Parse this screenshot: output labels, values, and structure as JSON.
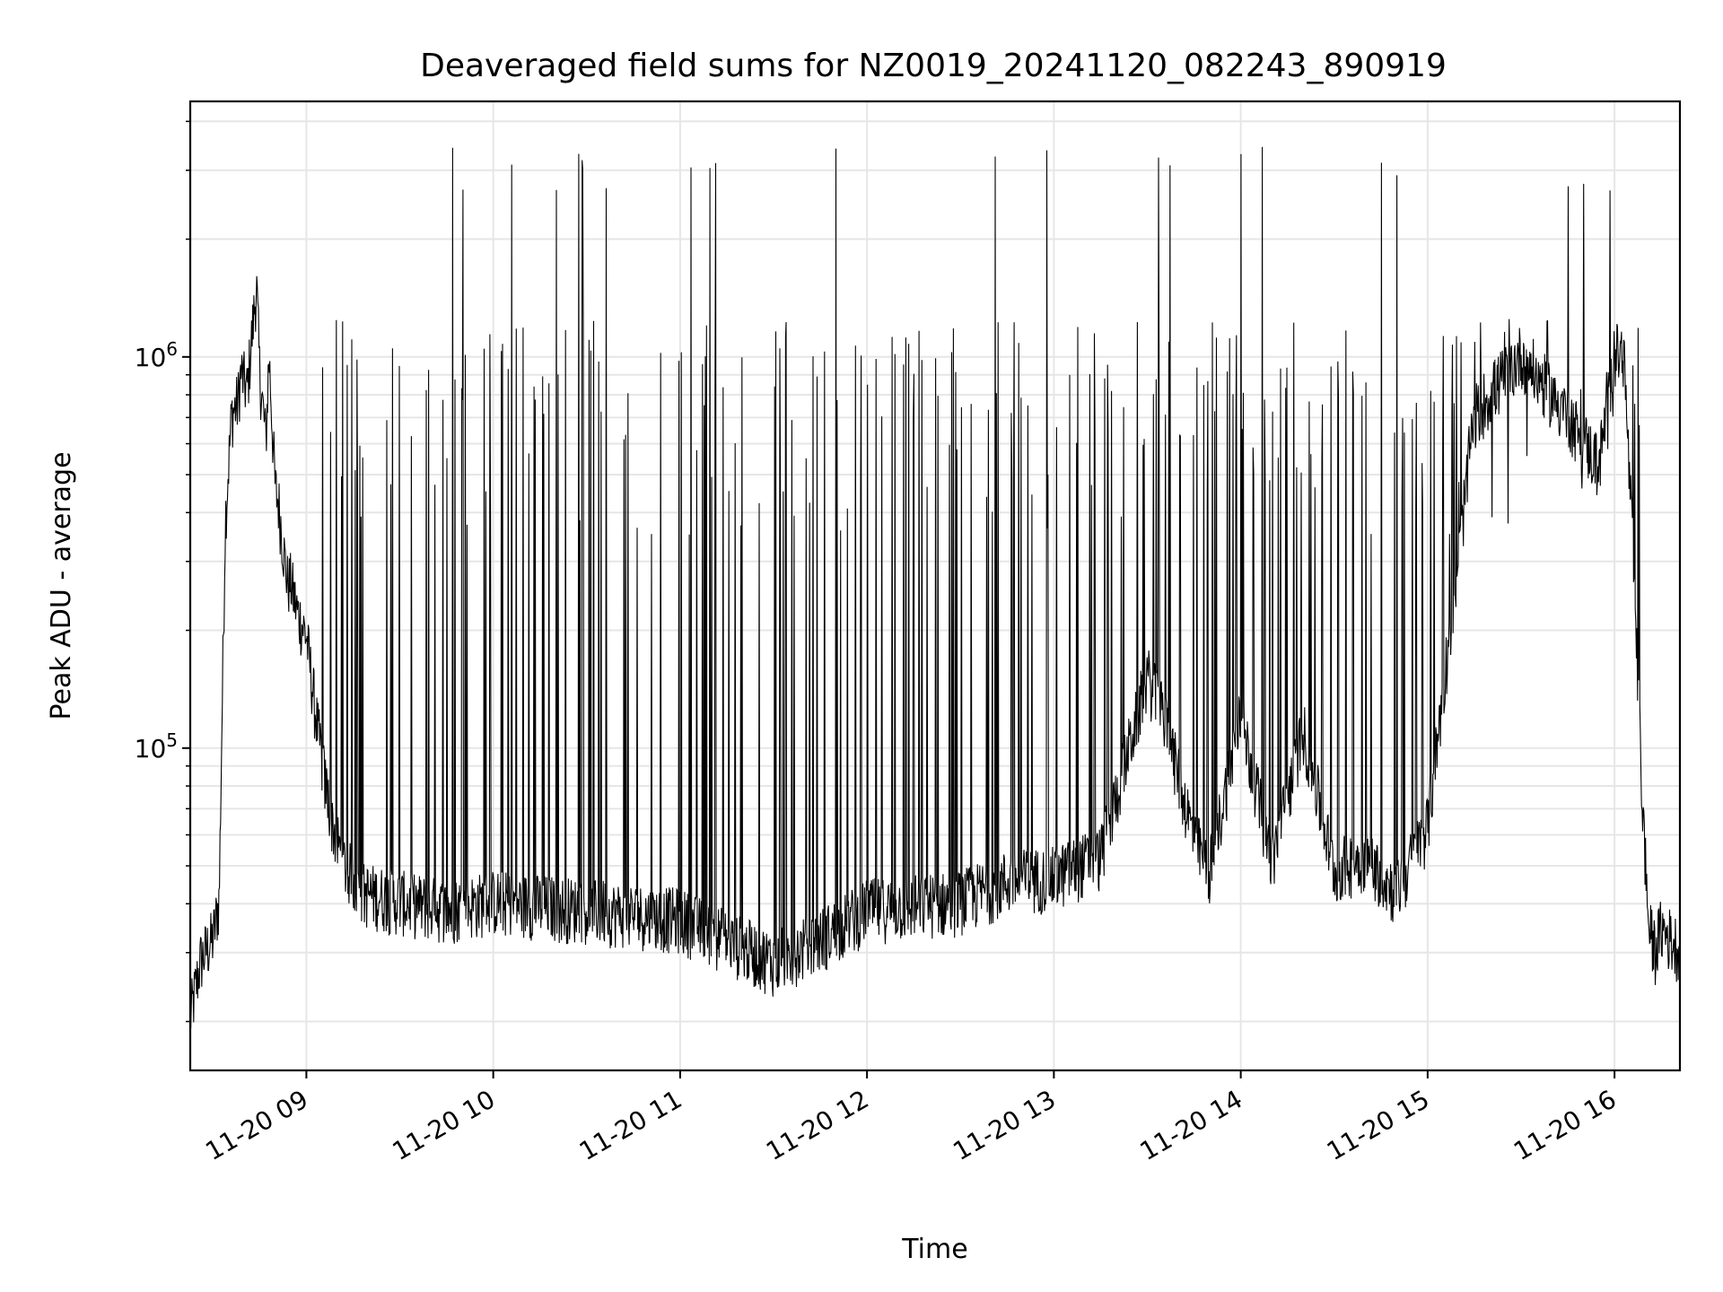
{
  "chart_data": {
    "type": "line",
    "title": "Deaveraged field sums for NZ0019_20241120_082243_890919",
    "xlabel": "Time",
    "ylabel": "Peak ADU - average",
    "yscale": "log",
    "xlim": [
      "2024-11-20 08:22:43",
      "2024-11-20 16:21:00"
    ],
    "ylim": [
      15000,
      4500000
    ],
    "grid": true,
    "line_color": "#000000",
    "x_tick_labels": [
      "11-20 09",
      "11-20 10",
      "11-20 11",
      "11-20 12",
      "11-20 13",
      "11-20 14",
      "11-20 15",
      "11-20 16"
    ],
    "x_tick_values": [
      "2024-11-20 09:00",
      "2024-11-20 10:00",
      "2024-11-20 11:00",
      "2024-11-20 12:00",
      "2024-11-20 13:00",
      "2024-11-20 14:00",
      "2024-11-20 15:00",
      "2024-11-20 16:00"
    ],
    "y_ticks": [
      {
        "value": 100000,
        "base": "10",
        "exp": "5"
      },
      {
        "value": 1000000,
        "base": "10",
        "exp": "6"
      }
    ],
    "series": [
      {
        "x": [
          "2024-11-20 08:22:43",
          "2024-11-20 08:26",
          "2024-11-20 08:29",
          "2024-11-20 08:30",
          "2024-11-20 08:32",
          "2024-11-20 08:33",
          "2024-11-20 08:34",
          "2024-11-20 08:36",
          "2024-11-20 08:38",
          "2024-11-20 08:39",
          "2024-11-20 08:41",
          "2024-11-20 08:42",
          "2024-11-20 08:44",
          "2024-11-20 08:45",
          "2024-11-20 08:47",
          "2024-11-20 08:48",
          "2024-11-20 08:50",
          "2024-11-20 08:51",
          "2024-11-20 08:53",
          "2024-11-20 08:54",
          "2024-11-20 08:55",
          "2024-11-20 08:57",
          "2024-11-20 09:00",
          "2024-11-20 09:03",
          "2024-11-20 09:06",
          "2024-11-20 09:09",
          "2024-11-20 09:12",
          "2024-11-20 09:18",
          "2024-11-20 09:30",
          "2024-11-20 09:45",
          "2024-11-20 10:00",
          "2024-11-20 10:30",
          "2024-11-20 11:00",
          "2024-11-20 11:30",
          "2024-11-20 11:45",
          "2024-11-20 12:00",
          "2024-11-20 12:30",
          "2024-11-20 12:45",
          "2024-11-20 13:00",
          "2024-11-20 13:15",
          "2024-11-20 13:30",
          "2024-11-20 13:35",
          "2024-11-20 13:45",
          "2024-11-20 13:50",
          "2024-11-20 14:00",
          "2024-11-20 14:10",
          "2024-11-20 14:20",
          "2024-11-20 14:30",
          "2024-11-20 14:40",
          "2024-11-20 14:50",
          "2024-11-20 15:00",
          "2024-11-20 15:15",
          "2024-11-20 15:30",
          "2024-11-20 15:45",
          "2024-11-20 15:55",
          "2024-11-20 16:00",
          "2024-11-20 16:03",
          "2024-11-20 16:06",
          "2024-11-20 16:09",
          "2024-11-20 16:11",
          "2024-11-20 16:13",
          "2024-11-20 16:15",
          "2024-11-20 16:18",
          "2024-11-20 16:21"
        ],
        "y": [
          20000,
          28000,
          31000,
          32000,
          40000,
          130000,
          380000,
          700000,
          750000,
          900000,
          800000,
          1000000,
          1500000,
          900000,
          600000,
          1000000,
          450000,
          420000,
          300000,
          260000,
          260000,
          220000,
          190000,
          120000,
          80000,
          60000,
          50000,
          42000,
          40000,
          38000,
          40000,
          38000,
          36000,
          28000,
          32000,
          38000,
          40000,
          45000,
          46000,
          52000,
          150000,
          120000,
          58000,
          48000,
          120000,
          50000,
          110000,
          48000,
          52000,
          42000,
          62000,
          700000,
          1000000,
          700000,
          520000,
          1000000,
          1000000,
          300000,
          70000,
          34000,
          30000,
          34000,
          32000,
          30000
        ]
      }
    ]
  }
}
